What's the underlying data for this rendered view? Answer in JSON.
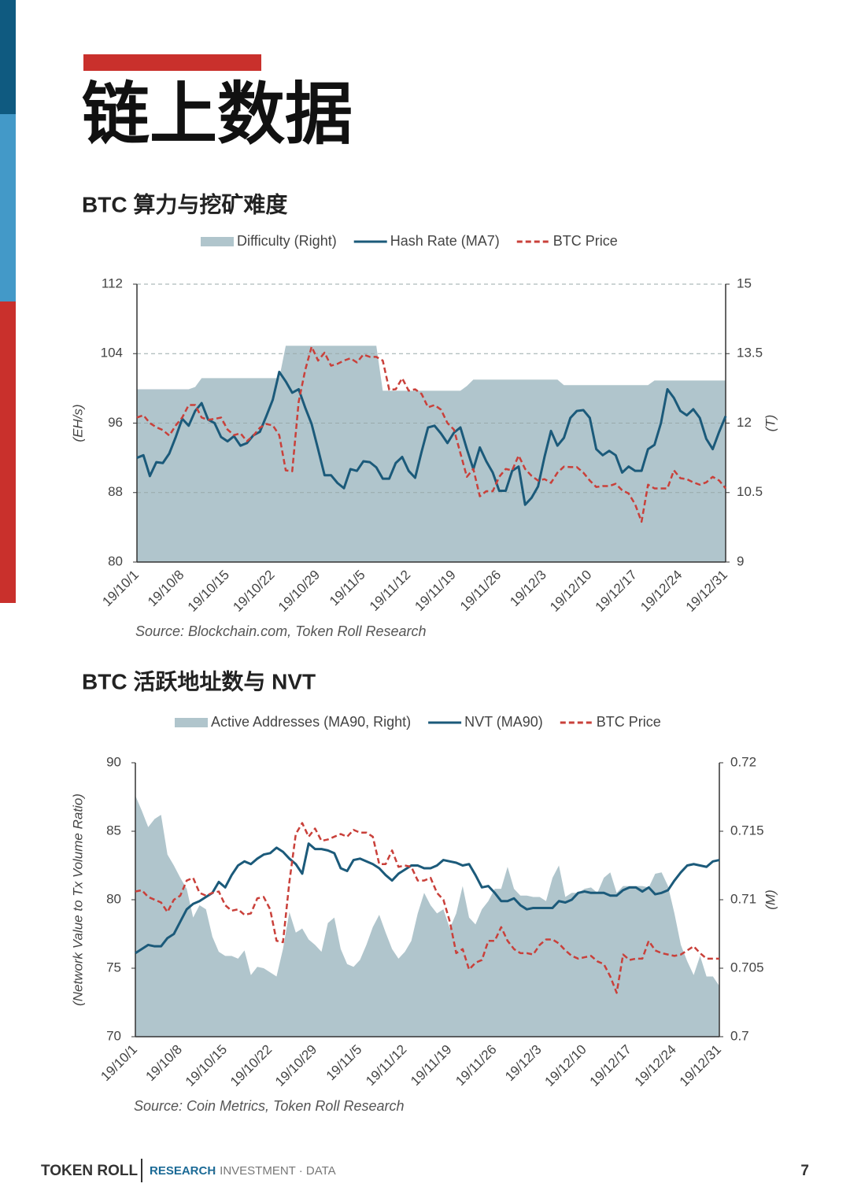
{
  "page": {
    "title": "链上数据",
    "footer": {
      "brand": "TOKEN ROLL",
      "tagline_lead": "RESEARCH",
      "tagline_rest": "· INVESTMENT · DATA",
      "page_number": 7
    }
  },
  "chart_data": [
    {
      "type": "line",
      "title": "BTC 算力与挖矿难度",
      "source": "Source: Blockchain.com, Token Roll Research",
      "ylabel": "(EH/s)",
      "y2label": "(T)",
      "grid": true,
      "categories": [
        "19/10/1",
        null,
        null,
        null,
        null,
        null,
        null,
        "19/10/8",
        null,
        null,
        null,
        null,
        null,
        null,
        "19/10/15",
        null,
        null,
        null,
        null,
        null,
        null,
        "19/10/22",
        null,
        null,
        null,
        null,
        null,
        null,
        "19/10/29",
        null,
        null,
        null,
        null,
        null,
        null,
        "19/11/5",
        null,
        null,
        null,
        null,
        null,
        null,
        "19/11/12",
        null,
        null,
        null,
        null,
        null,
        null,
        "19/11/19",
        null,
        null,
        null,
        null,
        null,
        null,
        "19/11/26",
        null,
        null,
        null,
        null,
        null,
        null,
        "19/12/3",
        null,
        null,
        null,
        null,
        null,
        null,
        "19/12/10",
        null,
        null,
        null,
        null,
        null,
        null,
        "19/12/17",
        null,
        null,
        null,
        null,
        null,
        null,
        "19/12/24",
        null,
        null,
        null,
        null,
        null,
        null,
        "19/12/31"
      ],
      "ylim": [
        80,
        112
      ],
      "yticks": [
        80,
        88,
        96,
        104,
        112
      ],
      "y2lim": [
        9,
        15
      ],
      "y2ticks": [
        9,
        10.5,
        12,
        13.5,
        15
      ],
      "series": [
        {
          "name": "Difficulty (Right)",
          "color": "#b0c5cc",
          "kind": "area",
          "axis": "y2",
          "values": [
            12.73,
            12.73,
            12.73,
            12.73,
            12.73,
            12.73,
            12.73,
            12.73,
            12.73,
            12.78,
            12.97,
            12.97,
            12.97,
            12.97,
            12.97,
            12.97,
            12.97,
            12.97,
            12.97,
            12.97,
            12.97,
            12.97,
            12.97,
            13.67,
            13.67,
            13.67,
            13.67,
            13.67,
            13.67,
            13.67,
            13.67,
            13.67,
            13.67,
            13.67,
            13.67,
            13.67,
            13.67,
            13.67,
            12.7,
            12.7,
            12.7,
            12.7,
            12.7,
            12.7,
            12.7,
            12.7,
            12.7,
            12.7,
            12.7,
            12.7,
            12.7,
            12.8,
            12.94,
            12.94,
            12.94,
            12.94,
            12.94,
            12.94,
            12.94,
            12.94,
            12.94,
            12.94,
            12.94,
            12.94,
            12.94,
            12.94,
            12.82,
            12.82,
            12.82,
            12.82,
            12.82,
            12.82,
            12.82,
            12.82,
            12.82,
            12.82,
            12.82,
            12.82,
            12.82,
            12.82,
            12.92,
            12.92,
            12.92,
            12.92,
            12.92,
            12.92,
            12.92,
            12.92,
            12.92,
            12.92,
            12.92,
            12.92
          ]
        },
        {
          "name": "Hash Rate (MA7)",
          "color": "#1b5a7a",
          "kind": "line",
          "values": [
            92,
            92.3,
            89.9,
            91.5,
            91.4,
            92.5,
            94.4,
            96.5,
            95.7,
            97.4,
            98.3,
            96.4,
            96,
            94.4,
            93.9,
            94.5,
            93.4,
            93.7,
            94.6,
            95,
            96.8,
            98.7,
            101.9,
            100.8,
            99.5,
            99.9,
            97.8,
            95.9,
            93,
            90,
            90,
            89.1,
            88.5,
            90.7,
            90.5,
            91.6,
            91.5,
            90.9,
            89.6,
            89.6,
            91.4,
            92.1,
            90.5,
            89.7,
            92.7,
            95.5,
            95.7,
            94.8,
            93.7,
            94.9,
            95.5,
            93,
            90.7,
            93.2,
            91.6,
            90.3,
            88.2,
            88.2,
            90.5,
            91,
            86.6,
            87.4,
            88.7,
            92.1,
            95.1,
            93.4,
            94.3,
            96.6,
            97.4,
            97.5,
            96.6,
            93,
            92.3,
            92.8,
            92.3,
            90.3,
            91,
            90.5,
            90.5,
            93,
            93.5,
            96,
            99.9,
            98.9,
            97.4,
            96.9,
            97.6,
            96.6,
            94.2,
            93,
            95,
            96.8
          ]
        },
        {
          "name": "BTC Price",
          "color": "#c9403a",
          "kind": "line",
          "dashed": true,
          "axis": "y2",
          "values": [
            12.12,
            12.17,
            12,
            11.91,
            11.85,
            11.73,
            11.95,
            12.12,
            12.39,
            12.39,
            12.12,
            12.07,
            12.09,
            12.12,
            11.86,
            11.74,
            11.78,
            11.61,
            11.73,
            11.9,
            11.98,
            11.95,
            11.74,
            10.98,
            10.96,
            12.46,
            13.14,
            13.65,
            13.35,
            13.52,
            13.24,
            13.28,
            13.35,
            13.4,
            13.31,
            13.48,
            13.43,
            13.43,
            13.35,
            12.72,
            12.73,
            12.97,
            12.7,
            12.73,
            12.63,
            12.34,
            12.39,
            12.29,
            12,
            11.86,
            11.35,
            10.84,
            11.01,
            10.42,
            10.53,
            10.53,
            10.84,
            11.01,
            10.98,
            11.3,
            11.01,
            10.86,
            10.76,
            10.79,
            10.71,
            10.93,
            11.06,
            11.05,
            11.05,
            10.93,
            10.76,
            10.62,
            10.64,
            10.64,
            10.69,
            10.55,
            10.48,
            10.25,
            9.87,
            10.67,
            10.59,
            10.59,
            10.59,
            10.98,
            10.81,
            10.79,
            10.72,
            10.67,
            10.72,
            10.84,
            10.76,
            10.59
          ]
        }
      ]
    },
    {
      "type": "line",
      "title": "BTC 活跃地址数与 NVT",
      "source": "Source: Coin Metrics, Token Roll Research",
      "ylabel": "(Network Value to Tx Volume Ratio)",
      "y2label": "(M)",
      "grid": false,
      "categories": [
        "19/10/1",
        null,
        null,
        null,
        null,
        null,
        null,
        "19/10/8",
        null,
        null,
        null,
        null,
        null,
        null,
        "19/10/15",
        null,
        null,
        null,
        null,
        null,
        null,
        "19/10/22",
        null,
        null,
        null,
        null,
        null,
        null,
        "19/10/29",
        null,
        null,
        null,
        null,
        null,
        null,
        "19/11/5",
        null,
        null,
        null,
        null,
        null,
        null,
        "19/11/12",
        null,
        null,
        null,
        null,
        null,
        null,
        "19/11/19",
        null,
        null,
        null,
        null,
        null,
        null,
        "19/11/26",
        null,
        null,
        null,
        null,
        null,
        null,
        "19/12/3",
        null,
        null,
        null,
        null,
        null,
        null,
        "19/12/10",
        null,
        null,
        null,
        null,
        null,
        null,
        "19/12/17",
        null,
        null,
        null,
        null,
        null,
        null,
        "19/12/24",
        null,
        null,
        null,
        null,
        null,
        null,
        "19/12/31"
      ],
      "ylim": [
        70,
        90
      ],
      "yticks": [
        70,
        75,
        80,
        85,
        90
      ],
      "y2lim": [
        0.7,
        0.72
      ],
      "y2ticks": [
        0.7,
        0.705,
        0.71,
        0.715,
        0.72
      ],
      "series": [
        {
          "name": "Active Addresses (MA90, Right)",
          "color": "#b0c5cc",
          "kind": "area",
          "axis": "y2",
          "values": [
            0.7176,
            0.7165,
            0.7153,
            0.7159,
            0.7162,
            0.7133,
            0.7125,
            0.7116,
            0.7108,
            0.7087,
            0.7096,
            0.7093,
            0.7073,
            0.7062,
            0.7059,
            0.7059,
            0.7057,
            0.7063,
            0.7045,
            0.7051,
            0.705,
            0.7047,
            0.7044,
            0.7064,
            0.7091,
            0.7076,
            0.7079,
            0.7071,
            0.7067,
            0.7062,
            0.7083,
            0.7087,
            0.7064,
            0.7053,
            0.7051,
            0.7056,
            0.7067,
            0.708,
            0.7089,
            0.7076,
            0.7064,
            0.7057,
            0.7062,
            0.707,
            0.709,
            0.7105,
            0.7096,
            0.709,
            0.7093,
            0.7079,
            0.709,
            0.711,
            0.7087,
            0.7082,
            0.7093,
            0.7099,
            0.7108,
            0.7108,
            0.7124,
            0.7108,
            0.7103,
            0.7103,
            0.7102,
            0.7102,
            0.7099,
            0.7116,
            0.7125,
            0.7102,
            0.7105,
            0.7105,
            0.7108,
            0.7109,
            0.7105,
            0.7116,
            0.712,
            0.7105,
            0.711,
            0.711,
            0.711,
            0.711,
            0.7109,
            0.7119,
            0.712,
            0.711,
            0.709,
            0.7067,
            0.7055,
            0.7045,
            0.7059,
            0.7044,
            0.7044,
            0.7037
          ]
        },
        {
          "name": "NVT (MA90)",
          "color": "#1b5a7a",
          "kind": "line",
          "values": [
            76.1,
            76.4,
            76.7,
            76.6,
            76.6,
            77.2,
            77.5,
            78.4,
            79.3,
            79.7,
            79.9,
            80.2,
            80.5,
            81.3,
            80.9,
            81.8,
            82.5,
            82.8,
            82.6,
            83,
            83.3,
            83.4,
            83.8,
            83.5,
            83,
            82.6,
            81.9,
            84.1,
            83.7,
            83.7,
            83.6,
            83.4,
            82.3,
            82.1,
            82.9,
            83,
            82.8,
            82.6,
            82.3,
            81.8,
            81.4,
            81.9,
            82.2,
            82.5,
            82.5,
            82.3,
            82.3,
            82.5,
            82.9,
            82.8,
            82.7,
            82.5,
            82.6,
            81.8,
            80.9,
            81,
            80.5,
            79.9,
            79.9,
            80.1,
            79.6,
            79.3,
            79.4,
            79.4,
            79.4,
            79.4,
            79.9,
            79.8,
            80,
            80.5,
            80.6,
            80.5,
            80.5,
            80.5,
            80.3,
            80.3,
            80.7,
            80.9,
            80.9,
            80.6,
            80.9,
            80.4,
            80.5,
            80.7,
            81.4,
            82,
            82.5,
            82.6,
            82.5,
            82.4,
            82.8,
            82.9
          ]
        },
        {
          "name": "BTC Price",
          "color": "#c9403a",
          "kind": "line",
          "dashed": true,
          "values": [
            80.6,
            80.7,
            80.2,
            80,
            79.8,
            79.1,
            80,
            80.3,
            81.4,
            81.6,
            80.5,
            80.3,
            80.5,
            80.6,
            79.6,
            79.2,
            79.3,
            78.9,
            79,
            80.1,
            80.2,
            79.3,
            77,
            76.9,
            81.3,
            84.8,
            85.6,
            84.6,
            85.2,
            84.3,
            84.4,
            84.6,
            84.8,
            84.6,
            85.1,
            84.9,
            84.9,
            84.6,
            82.6,
            82.6,
            83.6,
            82.4,
            82.5,
            82.4,
            81.4,
            81.4,
            81.6,
            80.5,
            80,
            78.4,
            76.1,
            76.4,
            74.9,
            75.4,
            75.6,
            77,
            77,
            78,
            77,
            76.4,
            76.1,
            76.1,
            76,
            76.7,
            77.1,
            77.1,
            76.8,
            76.3,
            75.9,
            75.7,
            75.8,
            75.9,
            75.5,
            75.3,
            74.4,
            73.2,
            76,
            75.6,
            75.7,
            75.7,
            77,
            76.3,
            76.1,
            76,
            75.9,
            76,
            76.3,
            76.6,
            76.1,
            75.7,
            75.7,
            75.7
          ]
        }
      ]
    }
  ]
}
